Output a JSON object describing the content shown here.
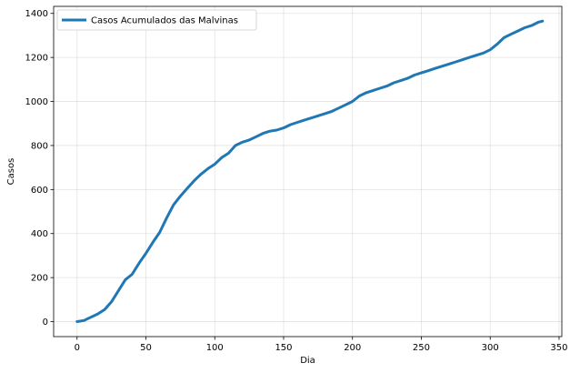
{
  "chart_data": {
    "type": "line",
    "title": "",
    "xlabel": "Dia",
    "ylabel": "Casos",
    "xlim": [
      -17,
      352
    ],
    "ylim": [
      -68,
      1432
    ],
    "xticks": [
      0,
      50,
      100,
      150,
      200,
      250,
      300,
      350
    ],
    "yticks": [
      0,
      200,
      400,
      600,
      800,
      1000,
      1200,
      1400
    ],
    "grid": true,
    "legend_position": "top-left",
    "series": [
      {
        "name": "Casos Acumulados das Malvinas",
        "color": "#1f77b4",
        "x": [
          0,
          5,
          10,
          15,
          20,
          25,
          30,
          35,
          40,
          45,
          50,
          55,
          60,
          65,
          70,
          75,
          80,
          85,
          90,
          95,
          100,
          105,
          110,
          115,
          120,
          125,
          130,
          135,
          140,
          145,
          150,
          155,
          160,
          165,
          170,
          175,
          180,
          185,
          190,
          195,
          200,
          205,
          210,
          215,
          220,
          225,
          230,
          235,
          240,
          245,
          250,
          255,
          260,
          265,
          270,
          275,
          280,
          285,
          290,
          295,
          300,
          305,
          310,
          315,
          320,
          325,
          330,
          335,
          338
        ],
        "y": [
          0,
          5,
          20,
          35,
          55,
          90,
          140,
          190,
          215,
          265,
          310,
          360,
          405,
          470,
          530,
          570,
          605,
          640,
          670,
          695,
          715,
          745,
          765,
          800,
          815,
          825,
          840,
          855,
          865,
          870,
          880,
          895,
          905,
          915,
          925,
          935,
          945,
          955,
          970,
          985,
          1000,
          1025,
          1040,
          1050,
          1060,
          1070,
          1085,
          1095,
          1105,
          1120,
          1130,
          1140,
          1150,
          1160,
          1170,
          1180,
          1190,
          1200,
          1210,
          1220,
          1235,
          1260,
          1290,
          1305,
          1320,
          1335,
          1345,
          1360,
          1365
        ]
      }
    ]
  }
}
